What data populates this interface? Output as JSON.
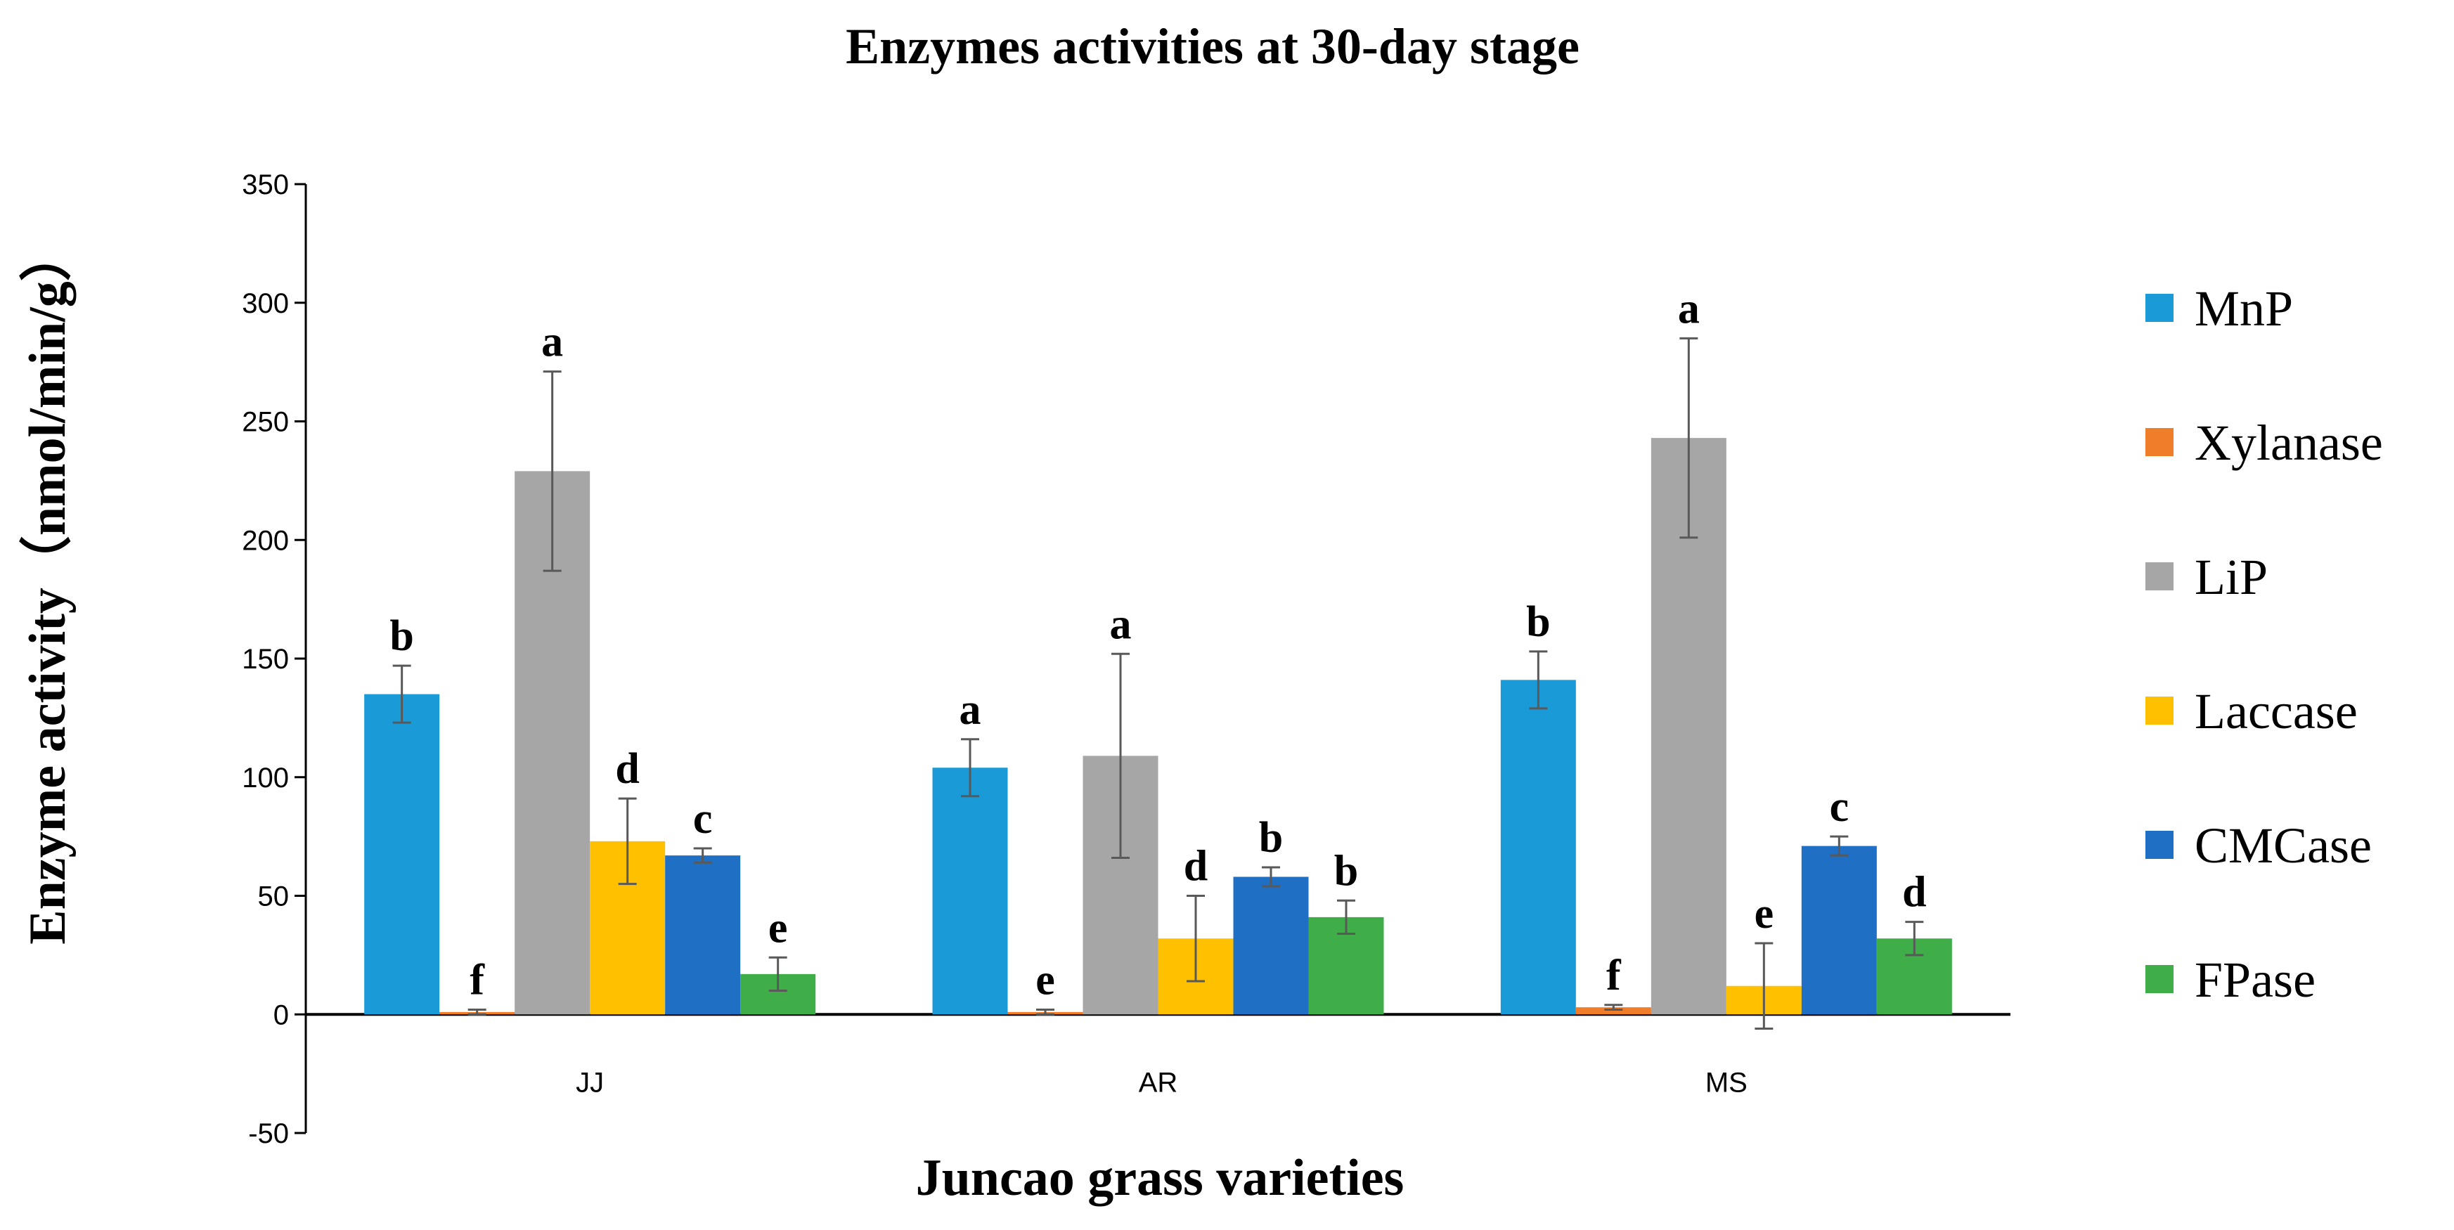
{
  "chart_data": {
    "type": "bar",
    "title": "Enzymes activities at 30-day stage",
    "xlabel": "Juncao grass varieties",
    "ylabel": "Enzyme activity（nmol/min/g）",
    "ylim": [
      -50,
      350
    ],
    "yticks": [
      -50,
      0,
      50,
      100,
      150,
      200,
      250,
      300,
      350
    ],
    "grid": false,
    "legend_position": "right",
    "categories": [
      "JJ",
      "AR",
      "MS"
    ],
    "series": [
      {
        "name": "MnP",
        "color": "#1a9ad6",
        "values": [
          135,
          104,
          141
        ],
        "errors": [
          12,
          12,
          12
        ],
        "letters": [
          "b",
          "a",
          "b"
        ]
      },
      {
        "name": "Xylanase",
        "color": "#f07d2a",
        "values": [
          1,
          1,
          3
        ],
        "errors": [
          1,
          1,
          1
        ],
        "letters": [
          "f",
          "e",
          "f"
        ]
      },
      {
        "name": "LiP",
        "color": "#a6a6a6",
        "values": [
          229,
          109,
          243
        ],
        "errors": [
          42,
          43,
          42
        ],
        "letters": [
          "a",
          "a",
          "a"
        ]
      },
      {
        "name": "Laccase",
        "color": "#ffc000",
        "values": [
          73,
          32,
          12
        ],
        "errors": [
          18,
          18,
          18
        ],
        "letters": [
          "d",
          "d",
          "e"
        ]
      },
      {
        "name": "CMCase",
        "color": "#1f6fc5",
        "values": [
          67,
          58,
          71
        ],
        "errors": [
          3,
          4,
          4
        ],
        "letters": [
          "c",
          "b",
          "c"
        ]
      },
      {
        "name": "FPase",
        "color": "#3fae49",
        "values": [
          17,
          41,
          32
        ],
        "errors": [
          7,
          7,
          7
        ],
        "letters": [
          "e",
          "b",
          "d"
        ]
      }
    ]
  }
}
